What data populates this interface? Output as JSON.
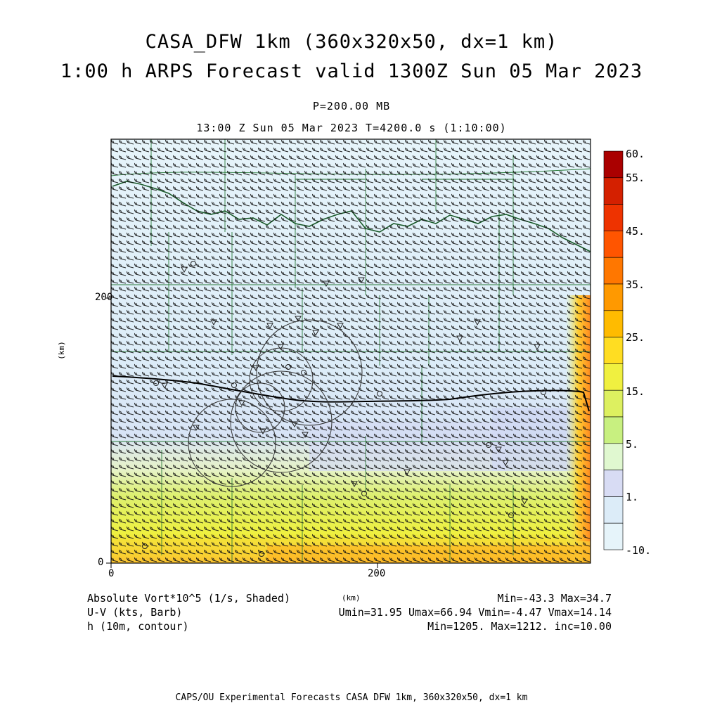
{
  "header": {
    "title_line1": "CASA_DFW 1km (360x320x50, dx=1 km)",
    "title_line2": "1:00 h ARPS Forecast valid 1300Z Sun 05 Mar 2023",
    "level": "P=200.00 MB",
    "time_line": "13:00 Z Sun 05 Mar 2023    T=4200.0 s (1:10:00)"
  },
  "axes": {
    "x_ticks": [
      "0",
      "200"
    ],
    "y_ticks": [
      "0",
      "200"
    ],
    "x_label": "(km)",
    "y_label": "(km)"
  },
  "colorbar": {
    "labels": [
      "60.",
      "55.",
      "45.",
      "35.",
      "25.",
      "15.",
      "5.",
      "1.",
      "-10."
    ],
    "colors": [
      "#aa0000",
      "#d42000",
      "#ee3300",
      "#ff5500",
      "#ff7700",
      "#ff9900",
      "#ffbb00",
      "#ffdd22",
      "#f0f040",
      "#ddf060",
      "#c8f080",
      "#e0f8d0",
      "#d8dcf4",
      "#dcecf8",
      "#e6f4fa"
    ]
  },
  "legend": {
    "field1": "Absolute Vort*10^5 (1/s, Shaded)",
    "field2": "U-V (kts, Barb)",
    "field3": "h (10m, contour)",
    "stats1": "Min=-43.3 Max=34.7",
    "stats2": "Umin=31.95 Umax=66.94 Vmin=-4.47 Vmax=14.14",
    "stats3": "Min=1205. Max=1212. inc=10.00"
  },
  "footer": "CAPS/OU Experimental Forecasts  CASA DFW 1km, 360x320x50, dx=1 km"
}
